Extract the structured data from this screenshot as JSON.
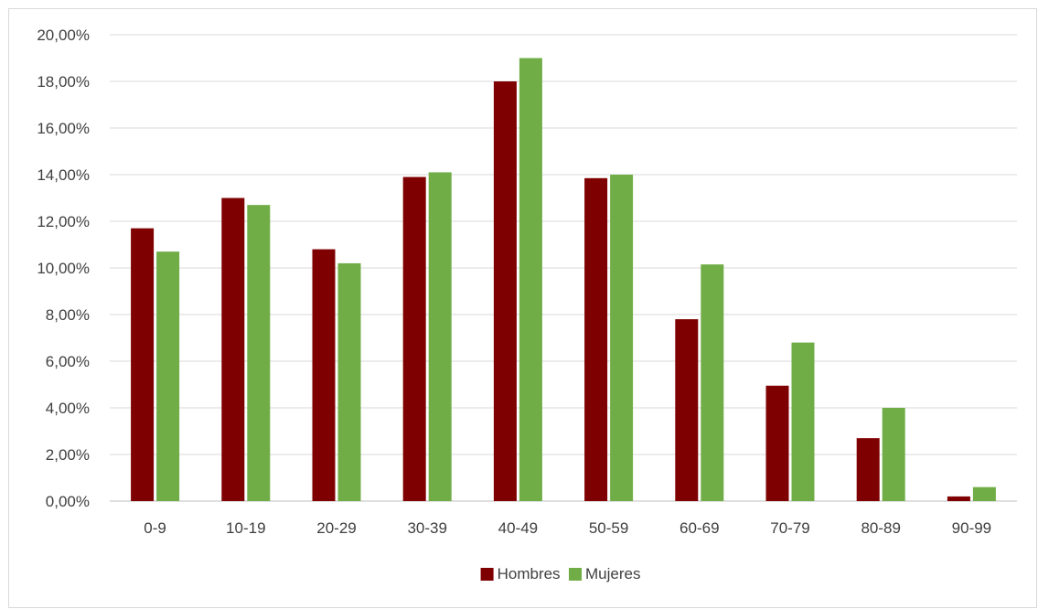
{
  "chart_data": {
    "type": "bar",
    "categories": [
      "0-9",
      "10-19",
      "20-29",
      "30-39",
      "40-49",
      "50-59",
      "60-69",
      "70-79",
      "80-89",
      "90-99"
    ],
    "series": [
      {
        "name": "Hombres",
        "color": "#7f0000",
        "values": [
          11.7,
          13.0,
          10.8,
          13.9,
          18.0,
          13.85,
          7.8,
          4.95,
          2.7,
          0.2
        ]
      },
      {
        "name": "Mujeres",
        "color": "#70ad47",
        "values": [
          10.7,
          12.7,
          10.2,
          14.1,
          19.0,
          14.0,
          10.15,
          6.8,
          4.0,
          0.6
        ]
      }
    ],
    "ylim": [
      0,
      20
    ],
    "y_ticks": [
      "0,00%",
      "2,00%",
      "4,00%",
      "6,00%",
      "8,00%",
      "10,00%",
      "12,00%",
      "14,00%",
      "16,00%",
      "18,00%",
      "20,00%"
    ],
    "grid": true,
    "legend_position": "bottom-center"
  }
}
